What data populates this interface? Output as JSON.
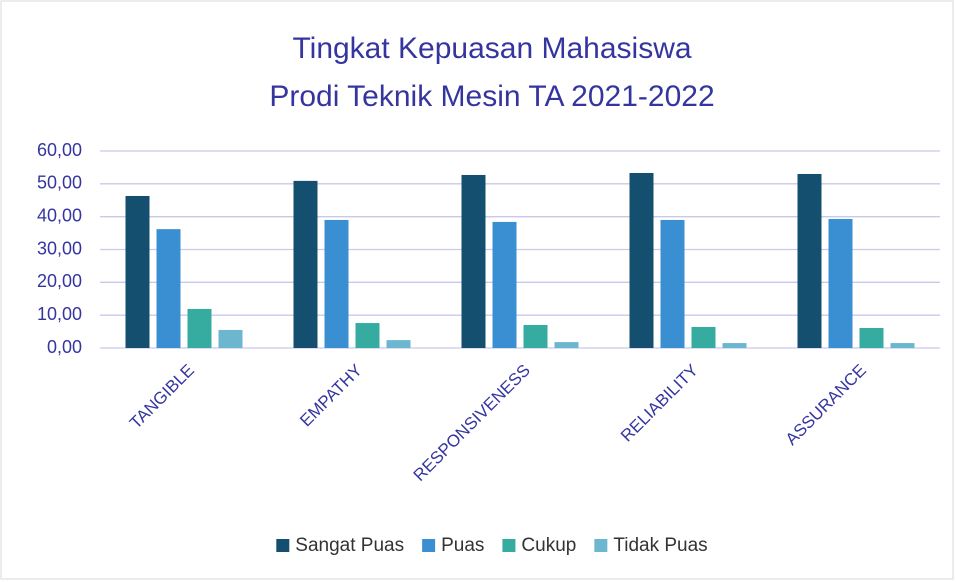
{
  "chart_data": {
    "type": "bar",
    "title": [
      "Tingkat Kepuasan Mahasiswa",
      "Prodi Teknik Mesin TA 2021-2022"
    ],
    "categories": [
      "TANGIBLE",
      "EMPATHY",
      "RESPONSIVENESS",
      "RELIABILITY",
      "ASSURANCE"
    ],
    "series": [
      {
        "name": "Sangat Puas",
        "color": "#154f70",
        "values": [
          46.3,
          50.9,
          52.7,
          53.3,
          53.0
        ]
      },
      {
        "name": "Puas",
        "color": "#3a8fd2",
        "values": [
          36.2,
          39.0,
          38.4,
          39.0,
          39.3
        ]
      },
      {
        "name": "Cukup",
        "color": "#36aba0",
        "values": [
          11.9,
          7.6,
          7.0,
          6.4,
          6.1
        ]
      },
      {
        "name": "Tidak Puas",
        "color": "#6cb7cf",
        "values": [
          5.5,
          2.4,
          1.8,
          1.5,
          1.5
        ]
      }
    ],
    "ylim": [
      0,
      60
    ],
    "yticks": [
      {
        "value": 0,
        "label": "0,00"
      },
      {
        "value": 10,
        "label": "10,00"
      },
      {
        "value": 20,
        "label": "20,00"
      },
      {
        "value": 30,
        "label": "30,00"
      },
      {
        "value": 40,
        "label": "40,00"
      },
      {
        "value": 50,
        "label": "50,00"
      },
      {
        "value": 60,
        "label": "60,00"
      }
    ],
    "grid": true,
    "legend": "bottom"
  }
}
